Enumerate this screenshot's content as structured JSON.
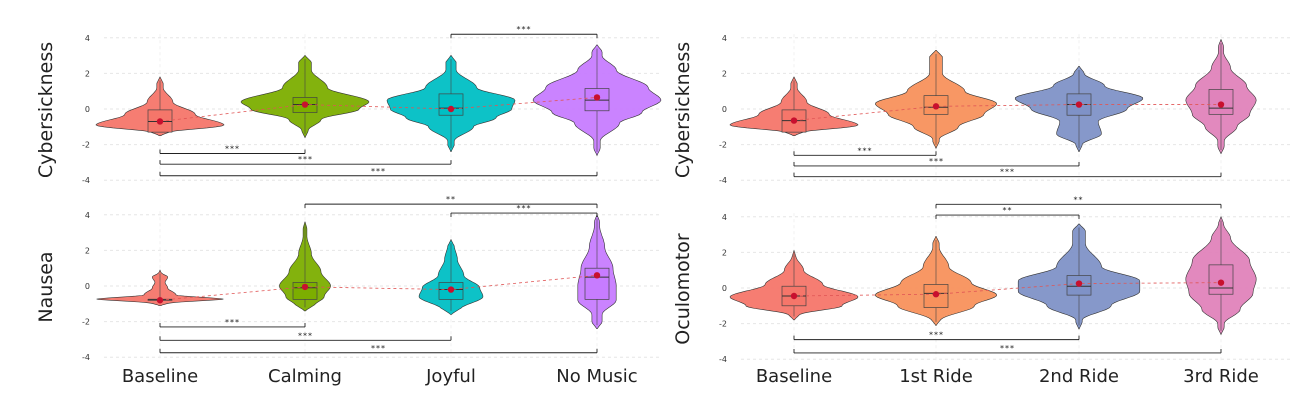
{
  "chart_data": [
    {
      "type": "violin",
      "ylabel": "Cybersickness",
      "ylim": [
        -4,
        4
      ],
      "yticks": [
        -4,
        -2,
        0,
        2,
        4
      ],
      "categories": [
        "Baseline",
        "Calming",
        "Joyful",
        "No Music"
      ],
      "colors": [
        "#f5766a",
        "#7cae00",
        "#00bfc4",
        "#c77cff"
      ],
      "means": [
        -0.7,
        0.25,
        0.0,
        0.65
      ],
      "medians": [
        -0.7,
        0.25,
        0.05,
        0.5
      ],
      "boxes": [
        [
          -1.3,
          -0.05
        ],
        [
          -0.2,
          0.65
        ],
        [
          -0.35,
          0.85
        ],
        [
          -0.1,
          1.15
        ]
      ],
      "violins": [
        {
          "shape": [
            [
              -1.3,
              0.25
            ],
            [
              -0.9,
              1.0
            ],
            [
              -0.3,
              0.55
            ],
            [
              0.4,
              0.2
            ],
            [
              1.2,
              0.05
            ]
          ],
          "range": [
            -1.5,
            1.8
          ]
        },
        {
          "shape": [
            [
              -1.2,
              0.05
            ],
            [
              -0.6,
              0.25
            ],
            [
              0,
              0.85
            ],
            [
              0.4,
              1.0
            ],
            [
              1.2,
              0.35
            ],
            [
              2.2,
              0.1
            ]
          ],
          "range": [
            -1.6,
            3.0
          ]
        },
        {
          "shape": [
            [
              -1.8,
              0.05
            ],
            [
              -1.0,
              0.35
            ],
            [
              -0.5,
              0.7
            ],
            [
              0,
              0.95
            ],
            [
              0.5,
              1.0
            ],
            [
              1.2,
              0.4
            ],
            [
              2.2,
              0.08
            ]
          ],
          "range": [
            -2.4,
            3.0
          ]
        },
        {
          "shape": [
            [
              -1.8,
              0.05
            ],
            [
              -0.8,
              0.35
            ],
            [
              -0.2,
              0.7
            ],
            [
              0.5,
              1.0
            ],
            [
              1.2,
              0.8
            ],
            [
              2.2,
              0.3
            ],
            [
              3.0,
              0.08
            ]
          ],
          "range": [
            -2.6,
            3.6
          ]
        }
      ],
      "comparisons": [
        {
          "from": 2,
          "to": 3,
          "label": "***",
          "y": 4.2
        },
        {
          "from": 0,
          "to": 1,
          "label": "***",
          "y": -2.5
        },
        {
          "from": 0,
          "to": 2,
          "label": "***",
          "y": -3.1
        },
        {
          "from": 0,
          "to": 3,
          "label": "***",
          "y": -3.75
        }
      ],
      "show_xlabels": false
    },
    {
      "type": "violin",
      "ylabel": "Nausea",
      "ylim": [
        -4,
        4
      ],
      "yticks": [
        -4,
        -2,
        0,
        2,
        4
      ],
      "categories": [
        "Baseline",
        "Calming",
        "Joyful",
        "No Music"
      ],
      "colors": [
        "#f5766a",
        "#7cae00",
        "#00bfc4",
        "#c77cff"
      ],
      "means": [
        -0.8,
        -0.05,
        -0.2,
        0.6
      ],
      "medians": [
        -0.75,
        -0.1,
        -0.2,
        0.5
      ],
      "boxes": [
        [
          -0.75,
          -0.75
        ],
        [
          -0.75,
          0.2
        ],
        [
          -0.75,
          0.2
        ],
        [
          -0.75,
          1.0
        ]
      ],
      "violins": [
        {
          "shape": [
            [
              -1.0,
              0.35
            ],
            [
              -0.75,
              1.0
            ],
            [
              -0.5,
              0.25
            ],
            [
              -0.1,
              0.12
            ],
            [
              0.2,
              0.08
            ],
            [
              0.5,
              0.12
            ],
            [
              0.8,
              0.04
            ]
          ],
          "range": [
            -1.1,
            0.9
          ]
        },
        {
          "shape": [
            [
              -1.1,
              0.15
            ],
            [
              -0.6,
              0.3
            ],
            [
              0,
              0.4
            ],
            [
              0.8,
              0.25
            ],
            [
              1.8,
              0.1
            ],
            [
              2.8,
              0.03
            ]
          ],
          "range": [
            -1.4,
            3.6
          ]
        },
        {
          "shape": [
            [
              -1.3,
              0.15
            ],
            [
              -0.6,
              0.5
            ],
            [
              -0.1,
              0.45
            ],
            [
              0.6,
              0.2
            ],
            [
              1.5,
              0.1
            ],
            [
              2.3,
              0.05
            ]
          ],
          "range": [
            -1.6,
            2.6
          ]
        },
        {
          "shape": [
            [
              -1.6,
              0.08
            ],
            [
              -0.8,
              0.3
            ],
            [
              0,
              0.3
            ],
            [
              1.0,
              0.25
            ],
            [
              2.2,
              0.12
            ],
            [
              3.4,
              0.04
            ]
          ],
          "range": [
            -2.4,
            4.0
          ]
        }
      ],
      "comparisons": [
        {
          "from": 1,
          "to": 3,
          "label": "**",
          "y": 4.6
        },
        {
          "from": 2,
          "to": 3,
          "label": "***",
          "y": 4.1
        },
        {
          "from": 0,
          "to": 1,
          "label": "***",
          "y": -2.3
        },
        {
          "from": 0,
          "to": 2,
          "label": "***",
          "y": -3.05
        },
        {
          "from": 0,
          "to": 3,
          "label": "***",
          "y": -3.75
        }
      ],
      "show_xlabels": true
    },
    {
      "type": "violin",
      "ylabel": "Cybersickness",
      "ylim": [
        -4,
        4
      ],
      "yticks": [
        -4,
        -2,
        0,
        2,
        4
      ],
      "categories": [
        "Baseline",
        "1st Ride",
        "2nd Ride",
        "3rd Ride"
      ],
      "colors": [
        "#f5766a",
        "#f8915c",
        "#7f92c7",
        "#e083bb"
      ],
      "means": [
        -0.65,
        0.15,
        0.25,
        0.25
      ],
      "medians": [
        -0.65,
        0.1,
        0.25,
        0.05
      ],
      "boxes": [
        [
          -1.3,
          -0.05
        ],
        [
          -0.3,
          0.75
        ],
        [
          -0.35,
          0.85
        ],
        [
          -0.3,
          1.1
        ]
      ],
      "violins": [
        {
          "shape": [
            [
              -1.3,
              0.25
            ],
            [
              -0.9,
              1.0
            ],
            [
              -0.3,
              0.55
            ],
            [
              0.4,
              0.2
            ],
            [
              1.2,
              0.05
            ]
          ],
          "range": [
            -1.5,
            1.8
          ]
        },
        {
          "shape": [
            [
              -1.7,
              0.05
            ],
            [
              -1.0,
              0.35
            ],
            [
              -0.3,
              0.75
            ],
            [
              0.3,
              0.95
            ],
            [
              1.0,
              0.45
            ],
            [
              2.0,
              0.1
            ]
          ],
          "range": [
            -2.2,
            3.3
          ]
        },
        {
          "shape": [
            [
              -2.0,
              0.05
            ],
            [
              -1.4,
              0.35
            ],
            [
              -0.7,
              0.3
            ],
            [
              0,
              0.75
            ],
            [
              0.6,
              1.0
            ],
            [
              1.3,
              0.4
            ],
            [
              2.0,
              0.08
            ]
          ],
          "range": [
            -2.4,
            2.4
          ]
        },
        {
          "shape": [
            [
              -1.8,
              0.05
            ],
            [
              -1.0,
              0.25
            ],
            [
              -0.3,
              0.45
            ],
            [
              0.5,
              0.55
            ],
            [
              1.3,
              0.4
            ],
            [
              2.3,
              0.15
            ],
            [
              3.2,
              0.04
            ]
          ],
          "range": [
            -2.5,
            3.9
          ]
        }
      ],
      "comparisons": [
        {
          "from": 0,
          "to": 1,
          "label": "***",
          "y": -2.6
        },
        {
          "from": 0,
          "to": 2,
          "label": "***",
          "y": -3.2
        },
        {
          "from": 0,
          "to": 3,
          "label": "***",
          "y": -3.8
        }
      ],
      "show_xlabels": false
    },
    {
      "type": "violin",
      "ylabel": "Oculomotor",
      "ylim": [
        -4,
        4
      ],
      "yticks": [
        -4,
        -2,
        0,
        2,
        4
      ],
      "categories": [
        "Baseline",
        "1st Ride",
        "2nd Ride",
        "3rd Ride"
      ],
      "colors": [
        "#f5766a",
        "#f8915c",
        "#7f92c7",
        "#e083bb"
      ],
      "means": [
        -0.45,
        -0.35,
        0.25,
        0.3
      ],
      "medians": [
        -0.45,
        -0.3,
        0.1,
        0.0
      ],
      "boxes": [
        [
          -1.0,
          0.1
        ],
        [
          -1.1,
          0.2
        ],
        [
          -0.4,
          0.7
        ],
        [
          -0.35,
          1.3
        ]
      ],
      "violins": [
        {
          "shape": [
            [
              -1.5,
              0.1
            ],
            [
              -1.0,
              0.75
            ],
            [
              -0.5,
              1.0
            ],
            [
              0.2,
              0.45
            ],
            [
              1.0,
              0.15
            ],
            [
              1.8,
              0.03
            ]
          ],
          "range": [
            -1.8,
            2.1
          ]
        },
        {
          "shape": [
            [
              -1.8,
              0.08
            ],
            [
              -1.0,
              0.6
            ],
            [
              -0.4,
              0.95
            ],
            [
              0.3,
              0.55
            ],
            [
              1.2,
              0.2
            ],
            [
              2.3,
              0.05
            ]
          ],
          "range": [
            -2.1,
            2.9
          ]
        },
        {
          "shape": [
            [
              -1.8,
              0.05
            ],
            [
              -1.0,
              0.5
            ],
            [
              -0.2,
              0.95
            ],
            [
              0.4,
              0.95
            ],
            [
              1.2,
              0.35
            ],
            [
              2.5,
              0.1
            ]
          ],
          "range": [
            -2.3,
            3.6
          ]
        },
        {
          "shape": [
            [
              -2.0,
              0.05
            ],
            [
              -1.2,
              0.3
            ],
            [
              -0.3,
              0.5
            ],
            [
              0.5,
              0.55
            ],
            [
              1.5,
              0.45
            ],
            [
              2.8,
              0.15
            ],
            [
              3.6,
              0.04
            ]
          ],
          "range": [
            -2.6,
            4.0
          ]
        }
      ],
      "comparisons": [
        {
          "from": 1,
          "to": 3,
          "label": "**",
          "y": 4.7
        },
        {
          "from": 1,
          "to": 2,
          "label": "**",
          "y": 4.1
        },
        {
          "from": 0,
          "to": 2,
          "label": "***",
          "y": -2.9
        },
        {
          "from": 0,
          "to": 3,
          "label": "***",
          "y": -3.65
        }
      ],
      "show_xlabels": true
    }
  ]
}
